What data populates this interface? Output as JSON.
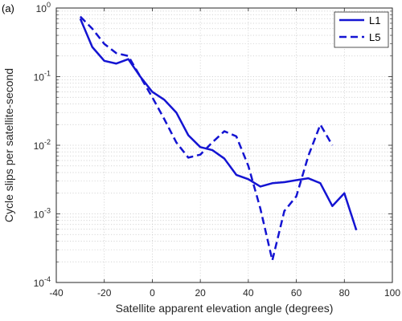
{
  "panel_label": "(a)",
  "chart_data": {
    "type": "line",
    "xlabel": "Satellite apparent elevation angle (degrees)",
    "ylabel": "Cycle slips per satellite-second",
    "xlim": [
      -40,
      100
    ],
    "ylim": [
      0.0001,
      1
    ],
    "yscale": "log",
    "x_ticks": [
      -40,
      -20,
      0,
      20,
      40,
      60,
      80,
      100
    ],
    "x_tick_labels": [
      "-40",
      "-20",
      "0",
      "20",
      "40",
      "60",
      "80",
      "100"
    ],
    "y_ticks": [
      0.0001,
      0.001,
      0.01,
      0.1,
      1
    ],
    "y_tick_labels": [
      {
        "base": "10",
        "exp": "-4"
      },
      {
        "base": "10",
        "exp": "-3"
      },
      {
        "base": "10",
        "exp": "-2"
      },
      {
        "base": "10",
        "exp": "-1"
      },
      {
        "base": "10",
        "exp": "0"
      }
    ],
    "grid": "dotted",
    "legend_position": "top-right",
    "color": "#1414d2",
    "series": [
      {
        "name": "L1",
        "style": "solid",
        "x": [
          -30,
          -25,
          -20,
          -15,
          -10,
          -5,
          0,
          5,
          10,
          15,
          20,
          25,
          30,
          35,
          40,
          45,
          50,
          55,
          60,
          65,
          70,
          75,
          80,
          85
        ],
        "y": [
          0.7,
          0.27,
          0.17,
          0.155,
          0.18,
          0.1,
          0.06,
          0.046,
          0.03,
          0.014,
          0.0094,
          0.0085,
          0.0064,
          0.0037,
          0.0032,
          0.0025,
          0.0028,
          0.0029,
          0.0031,
          0.0033,
          0.0028,
          0.0013,
          0.002,
          0.00058
        ]
      },
      {
        "name": "L5",
        "style": "dashed",
        "x": [
          -30,
          -25,
          -20,
          -15,
          -10,
          -5,
          0,
          5,
          10,
          15,
          20,
          25,
          30,
          35,
          40,
          45,
          50,
          55,
          60,
          65,
          70,
          75
        ],
        "y": [
          0.75,
          0.5,
          0.3,
          0.22,
          0.2,
          0.1,
          0.05,
          0.024,
          0.011,
          0.0066,
          0.0073,
          0.011,
          0.016,
          0.0135,
          0.005,
          0.0012,
          0.00021,
          0.0011,
          0.0018,
          0.007,
          0.02,
          0.01
        ]
      }
    ]
  }
}
